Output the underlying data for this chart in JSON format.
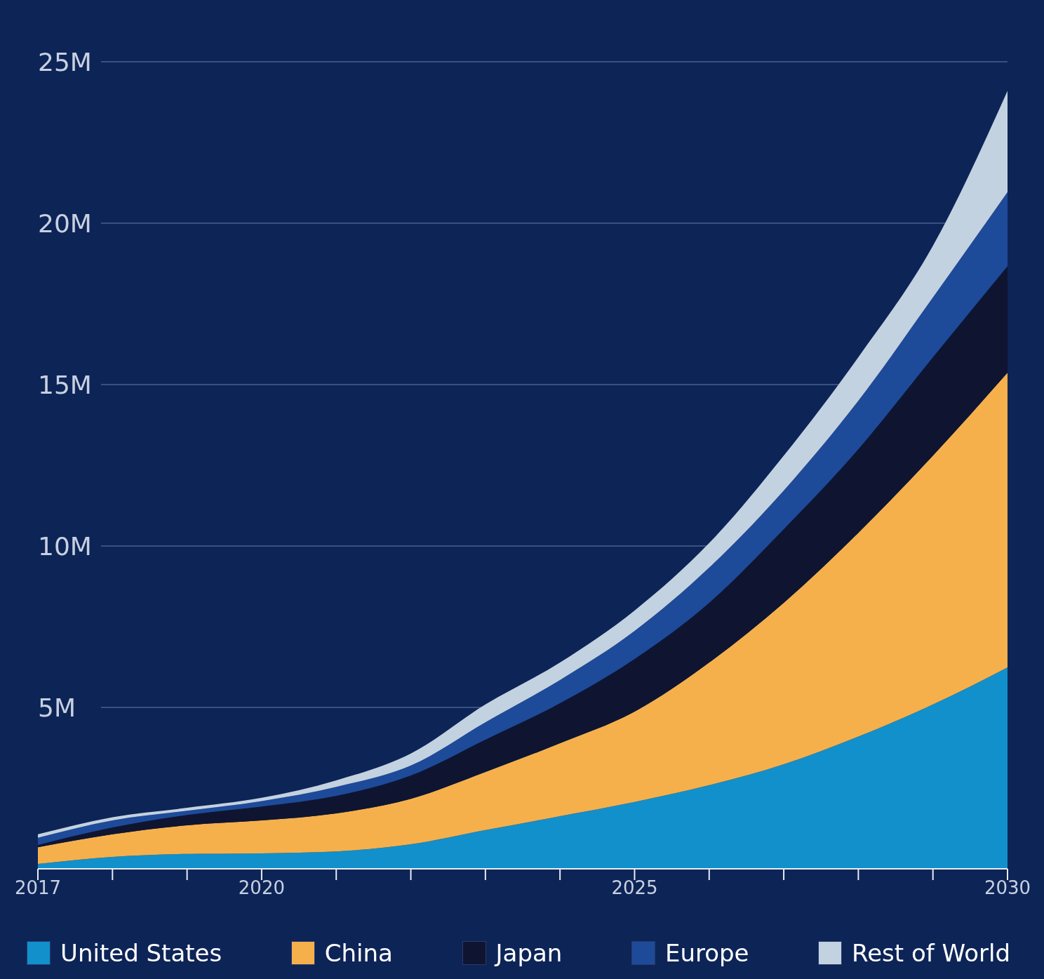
{
  "chart_data": {
    "type": "area",
    "stacked": true,
    "x": [
      2017,
      2018,
      2019,
      2020,
      2021,
      2022,
      2023,
      2024,
      2025,
      2026,
      2027,
      2028,
      2029,
      2030
    ],
    "series": [
      {
        "name": "United States",
        "color": "#1190cc",
        "values": [
          0.15,
          0.37,
          0.46,
          0.48,
          0.54,
          0.76,
          1.2,
          1.63,
          2.07,
          2.59,
          3.24,
          4.1,
          5.09,
          6.24
        ]
      },
      {
        "name": "China",
        "color": "#f5b04c",
        "values": [
          0.52,
          0.7,
          0.89,
          1.02,
          1.18,
          1.41,
          1.8,
          2.26,
          2.8,
          3.8,
          5.0,
          6.31,
          7.71,
          9.13
        ]
      },
      {
        "name": "Japan",
        "color": "#0f1530",
        "values": [
          0.07,
          0.21,
          0.32,
          0.43,
          0.54,
          0.72,
          1.0,
          1.24,
          1.63,
          1.85,
          2.28,
          2.59,
          3.05,
          3.3
        ]
      },
      {
        "name": "Europe",
        "color": "#1e4a9a",
        "values": [
          0.22,
          0.22,
          0.13,
          0.17,
          0.28,
          0.31,
          0.54,
          0.72,
          0.87,
          1.09,
          1.2,
          1.5,
          1.85,
          2.29
        ]
      },
      {
        "name": "Rest of World",
        "color": "#c3d2e0",
        "values": [
          0.11,
          0.1,
          0.09,
          0.1,
          0.2,
          0.37,
          0.55,
          0.54,
          0.63,
          0.76,
          1.08,
          1.35,
          1.6,
          3.14
        ]
      }
    ],
    "xlim": [
      2017,
      2030
    ],
    "xticks": [
      2017,
      {
        "value": 2018,
        "label": null
      },
      {
        "value": 2019,
        "label": null
      },
      2020,
      {
        "value": 2021,
        "label": null
      },
      {
        "value": 2022,
        "label": null
      },
      {
        "value": 2023,
        "label": null
      },
      {
        "value": 2024,
        "label": null
      },
      2025,
      {
        "value": 2026,
        "label": null
      },
      {
        "value": 2027,
        "label": null
      },
      {
        "value": 2028,
        "label": null
      },
      {
        "value": 2029,
        "label": null
      },
      2030
    ],
    "ylim": [
      0,
      25
    ],
    "yticks": [
      {
        "value": 5,
        "label": "5M"
      },
      {
        "value": 10,
        "label": "10M"
      },
      {
        "value": 15,
        "label": "15M"
      },
      {
        "value": 20,
        "label": "20M"
      },
      {
        "value": 25,
        "label": "25M"
      }
    ],
    "grid": "y",
    "legend": "bottom"
  }
}
